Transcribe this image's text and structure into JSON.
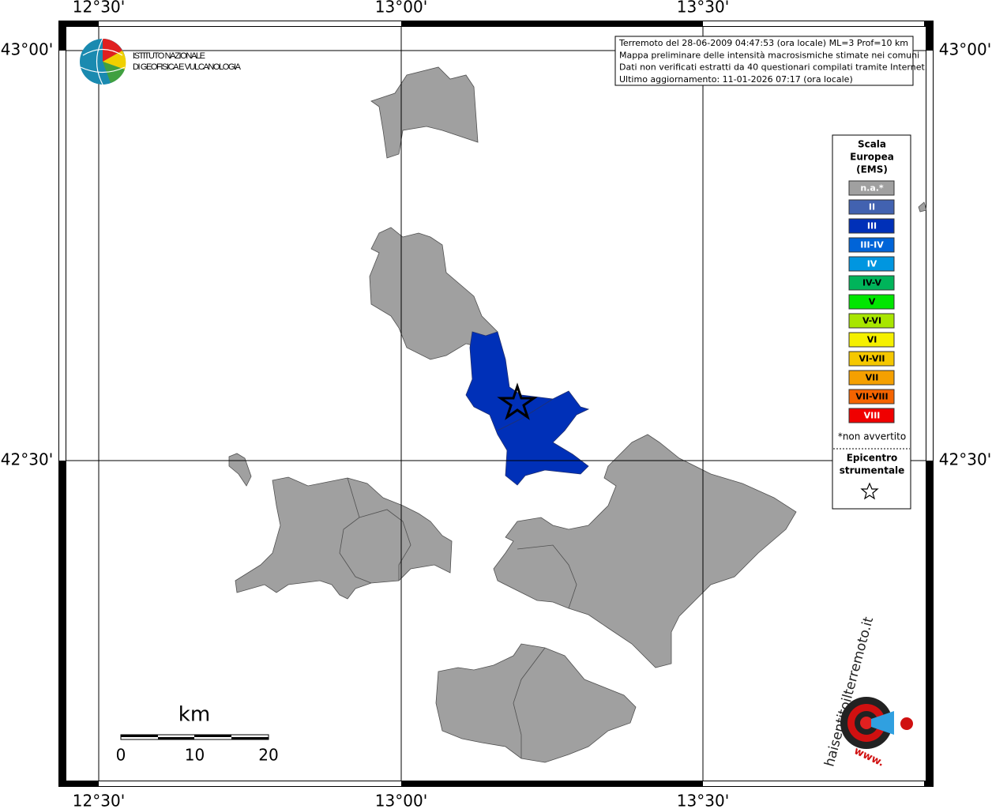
{
  "header": {
    "lines": [
      "Terremoto del 28-06-2009 04:47:53 (ora locale) ML=3 Prof=10 km",
      "Mappa preliminare delle intensità macrosismiche stimate nei comuni",
      "Dati non verificati estratti da 40 questionari compilati tramite Internet.",
      "Ultimo aggiornamento: 11-01-2026 07:17 (ora locale)"
    ]
  },
  "logo": {
    "lines": [
      "ISTITUTO NAZIONALE",
      "DI GEOFISICA E VULCANOLOGIA"
    ]
  },
  "axes": {
    "top": [
      "12°30'",
      "13°00'",
      "13°30'"
    ],
    "bottom": [
      "12°30'",
      "13°00'",
      "13°30'"
    ],
    "left": [
      "43°00'",
      "42°30'"
    ],
    "right": [
      "43°00'",
      "42°30'"
    ]
  },
  "legend": {
    "title": [
      "Scala",
      "Europea",
      "(EMS)"
    ],
    "items": [
      {
        "label": "n.a.*",
        "color": "#a0a0a0",
        "text_color": "#ffffff"
      },
      {
        "label": "II",
        "color": "#4262b0",
        "text_color": "#ffffff"
      },
      {
        "label": "III",
        "color": "#0030b8",
        "text_color": "#ffffff"
      },
      {
        "label": "III-IV",
        "color": "#0064d8",
        "text_color": "#ffffff"
      },
      {
        "label": "IV",
        "color": "#0096e0",
        "text_color": "#ffffff"
      },
      {
        "label": "IV-V",
        "color": "#00b45a",
        "text_color": "#000000"
      },
      {
        "label": "V",
        "color": "#00e600",
        "text_color": "#000000"
      },
      {
        "label": "V-VI",
        "color": "#a8e600",
        "text_color": "#000000"
      },
      {
        "label": "VI",
        "color": "#f5f000",
        "text_color": "#000000"
      },
      {
        "label": "VI-VII",
        "color": "#f5c800",
        "text_color": "#000000"
      },
      {
        "label": "VII",
        "color": "#f5a000",
        "text_color": "#000000"
      },
      {
        "label": "VII-VIII",
        "color": "#f56400",
        "text_color": "#000000"
      },
      {
        "label": "VIII",
        "color": "#f00000",
        "text_color": "#ffffff"
      }
    ],
    "note": "*non avvertito",
    "epicenter": [
      "Epicentro",
      "strumentale"
    ]
  },
  "scale_bar": {
    "unit": "km",
    "labels": [
      "0",
      "10",
      "20"
    ]
  },
  "watermark": {
    "site": "haisentitoilterremoto.it",
    "prefix": "www."
  }
}
